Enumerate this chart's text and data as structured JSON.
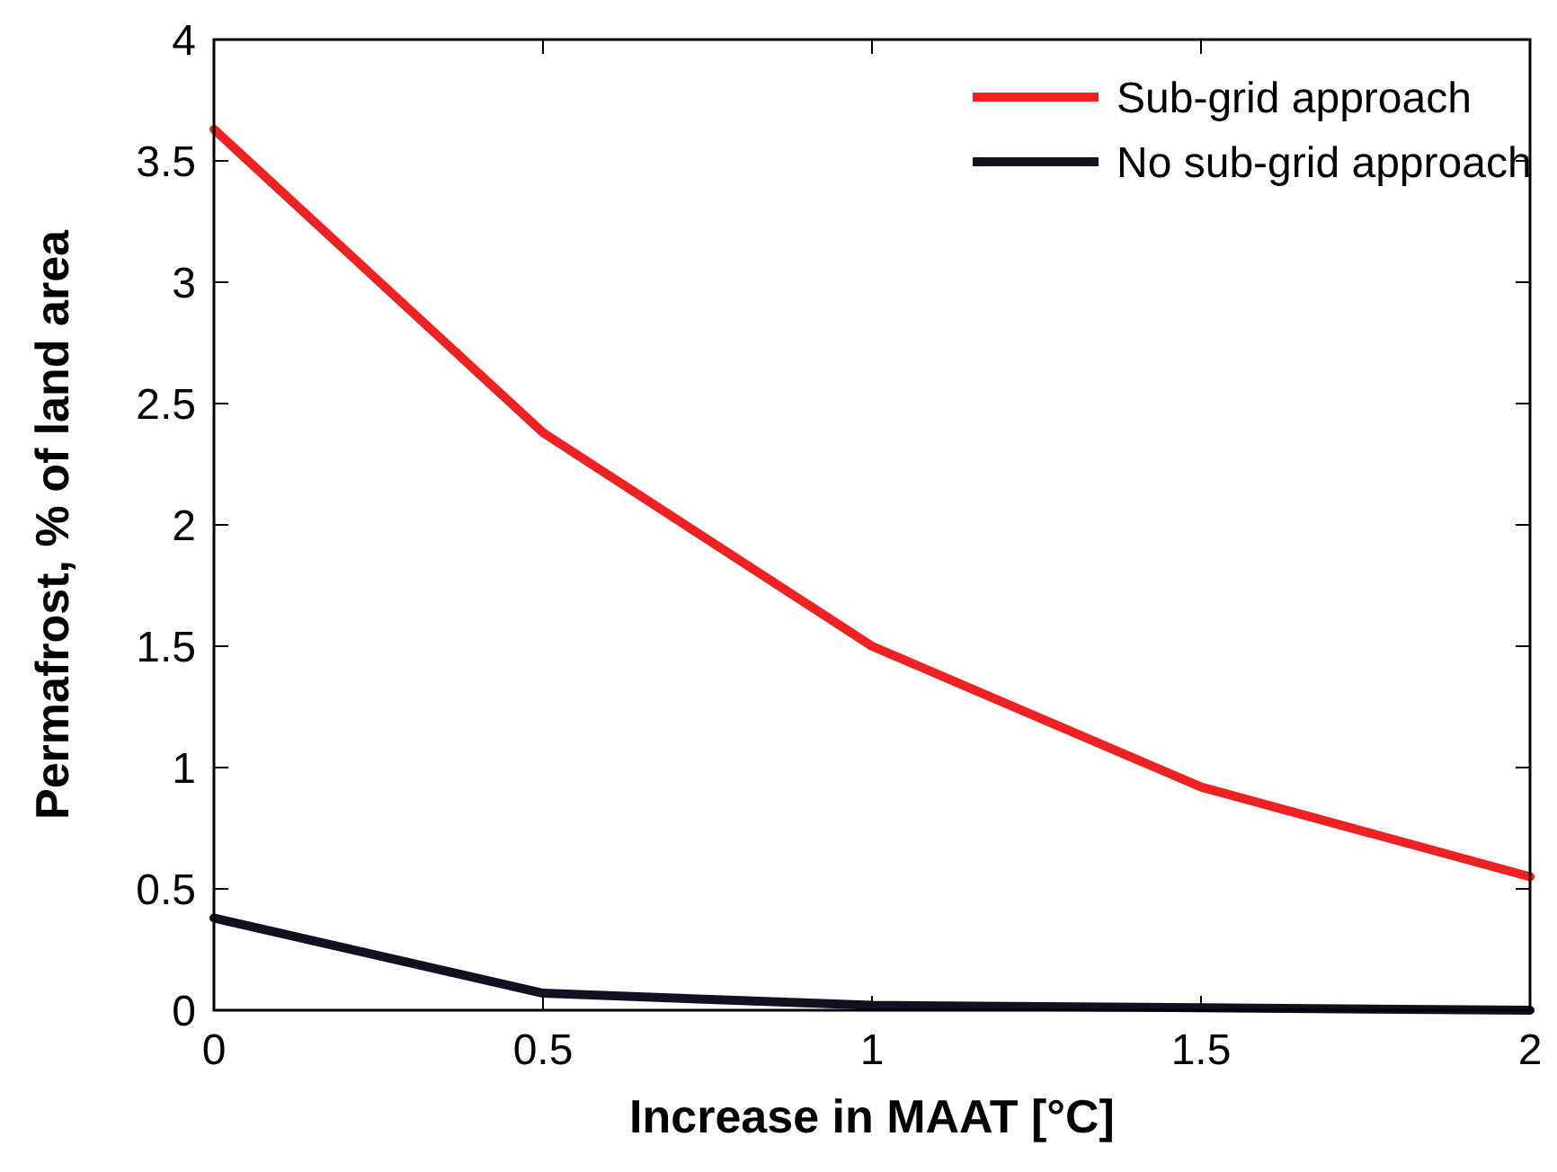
{
  "chart_data": {
    "type": "line",
    "xlabel": "Increase in MAAT [°C]",
    "ylabel": "Permafrost, % of land area",
    "x": [
      0,
      0.5,
      1,
      1.5,
      2
    ],
    "series": [
      {
        "name": "Sub-grid approach",
        "color": "#ee2222",
        "values": [
          3.63,
          2.38,
          1.5,
          0.92,
          0.55
        ]
      },
      {
        "name": "No sub-grid approach",
        "color": "#111122",
        "values": [
          0.38,
          0.07,
          0.02,
          0.01,
          0
        ]
      }
    ],
    "xlim": [
      0,
      2
    ],
    "xticks": [
      0,
      0.5,
      1,
      1.5,
      2
    ],
    "ylim": [
      0,
      4
    ],
    "yticks": [
      0,
      0.5,
      1,
      1.5,
      2,
      2.5,
      3,
      3.5,
      4
    ],
    "grid": false,
    "legend": "top right",
    "marker": "none",
    "line_style": "solid"
  }
}
